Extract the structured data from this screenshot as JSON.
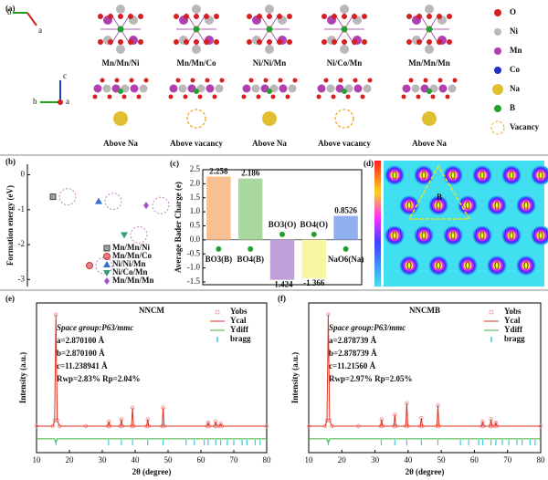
{
  "panel_a": {
    "label": "(a)",
    "axes_top": [
      "b",
      "a"
    ],
    "axes_bottom": [
      "c",
      "b",
      "a"
    ],
    "structures": [
      "Mn/Mn/Ni",
      "Mn/Mn/Co",
      "Ni/Ni/Mn",
      "Ni/Co/Mn",
      "Mn/Mn/Mn"
    ],
    "sites": [
      "Above Na",
      "Above vacancy",
      "Above Na",
      "Above vacancy",
      "Above Na"
    ],
    "legend": [
      {
        "label": "O",
        "color": "#d42020"
      },
      {
        "label": "Ni",
        "color": "#b8b8b8"
      },
      {
        "label": "Mn",
        "color": "#b040b0"
      },
      {
        "label": "Co",
        "color": "#2030c0"
      },
      {
        "label": "Na",
        "color": "#e0c030"
      },
      {
        "label": "B",
        "color": "#20a030"
      },
      {
        "label": "Vacancy",
        "color": "#f0a820"
      }
    ]
  },
  "panel_d": {
    "label": "(d)",
    "site": "B"
  },
  "chart_data": [
    {
      "type": "scatter",
      "panel": "(b)",
      "y_label": "Formation energy (eV)",
      "ylim": [
        -3.2,
        0.3
      ],
      "yticks": [
        0,
        -1,
        -2,
        -3
      ],
      "series": [
        {
          "name": "Mn/Mn/Ni",
          "color": "#444444",
          "marker": "square",
          "values": [
            -0.63
          ]
        },
        {
          "name": "Mn/Mn/Co",
          "color": "#d03030",
          "marker": "circle",
          "values": [
            -2.6
          ]
        },
        {
          "name": "Ni/Ni/Mn",
          "color": "#3070d0",
          "marker": "triangle",
          "values": [
            -0.76
          ]
        },
        {
          "name": "Ni/Co/Mn",
          "color": "#30a080",
          "marker": "down-triangle",
          "values": [
            -1.72
          ]
        },
        {
          "name": "Mn/Mn/Mn",
          "color": "#a050d0",
          "marker": "diamond",
          "values": [
            -0.88
          ]
        }
      ]
    },
    {
      "type": "bar",
      "panel": "(c)",
      "y_label": "Average Bader Charge (e)",
      "categories": [
        "BO3(B)",
        "BO4(B)",
        "BO3(O)",
        "BO4(O)",
        "NaO6(Na)"
      ],
      "values": [
        2.258,
        2.186,
        -1.424,
        -1.366,
        0.8526
      ],
      "colors": [
        "#f8c090",
        "#a8d8a0",
        "#c0a0d8",
        "#f8f4a0",
        "#90b0f0"
      ],
      "ylim": [
        -1.6,
        2.5
      ],
      "yticks": [
        2.5,
        {
          "value": 2,
          "label": "2.0"
        },
        1.5,
        {
          "value": 1,
          "label": "1.0"
        },
        0.5,
        {
          "value": 0,
          "label": "0.0"
        },
        -0.5,
        {
          "value": -1,
          "label": "-1.0"
        },
        -1.5
      ]
    },
    {
      "type": "xrd",
      "panel": "(e)",
      "title": "NNCM",
      "annotations": [
        "Space group:P63/mmc",
        "a=2.870100 Å",
        "b=2.870100 Å",
        "c=11.238941 Å",
        "Rwp=2.83% Rp=2.04%"
      ],
      "x_label": "2θ (degree)",
      "y_label": "Intensity (a.u.)",
      "xlim": [
        10,
        80
      ],
      "xticks": [
        10,
        20,
        30,
        40,
        50,
        60,
        70,
        80
      ],
      "ylim": [
        -0.2,
        1.1
      ],
      "x": [
        10,
        15,
        15.5,
        15.9,
        16.3,
        17,
        25,
        31.7,
        32,
        32.3,
        35.5,
        35.8,
        36.1,
        38.9,
        39.2,
        39.5,
        43.5,
        43.8,
        44.1,
        48.2,
        48.5,
        48.8,
        61.9,
        62.2,
        62.5,
        64.2,
        64.5,
        64.8,
        65.7,
        66,
        66.3,
        80
      ],
      "series": [
        {
          "name": "Yobs",
          "color": "#f0a0a0",
          "values": [
            0.03,
            0.03,
            0.08,
            1.0,
            0.08,
            0.03,
            0.03,
            0.03,
            0.07,
            0.03,
            0.03,
            0.09,
            0.03,
            0.03,
            0.19,
            0.03,
            0.03,
            0.09,
            0.03,
            0.03,
            0.19,
            0.03,
            0.03,
            0.06,
            0.03,
            0.03,
            0.07,
            0.03,
            0.03,
            0.05,
            0.03,
            0.03
          ]
        },
        {
          "name": "Ycal",
          "color": "#e03020",
          "values": [
            0.03,
            0.03,
            0.08,
            1.0,
            0.08,
            0.03,
            0.03,
            0.03,
            0.07,
            0.03,
            0.03,
            0.09,
            0.03,
            0.03,
            0.19,
            0.03,
            0.03,
            0.09,
            0.03,
            0.03,
            0.19,
            0.03,
            0.03,
            0.06,
            0.03,
            0.03,
            0.07,
            0.03,
            0.03,
            0.05,
            0.03,
            0.03
          ]
        },
        {
          "name": "Ydiff",
          "color": "#40b040",
          "values": [
            -0.08,
            -0.08,
            -0.08,
            -0.12,
            -0.08,
            -0.08,
            -0.08,
            -0.08,
            -0.08,
            -0.08,
            -0.08,
            -0.08,
            -0.08,
            -0.08,
            -0.08,
            -0.08,
            -0.08,
            -0.08,
            -0.08,
            -0.08,
            -0.08,
            -0.08,
            -0.08,
            -0.08,
            -0.08,
            -0.08,
            -0.08,
            -0.08,
            -0.08,
            -0.08,
            -0.08,
            -0.08
          ]
        },
        {
          "name": "bragg",
          "color": "#40c8e0",
          "x": [
            15.9,
            31.9,
            35.8,
            39.2,
            43.8,
            48.5,
            55.5,
            58,
            61,
            62.2,
            64.5,
            66,
            68,
            70,
            72.5,
            74,
            76.5,
            78
          ]
        }
      ]
    },
    {
      "type": "xrd",
      "panel": "(f)",
      "title": "NNCMB",
      "annotations": [
        "Space group:P63/mmc",
        "a=2.878739 Å",
        "b=2.878739 Å",
        "c=11.21560 Å",
        "Rwp=2.97% Rp=2.05%"
      ],
      "x_label": "2θ (degree)",
      "y_label": "Intensity (a.u.)",
      "xlim": [
        10,
        80
      ],
      "xticks": [
        10,
        20,
        30,
        40,
        50,
        60,
        70,
        80
      ],
      "ylim": [
        -0.2,
        1.1
      ],
      "x": [
        10,
        15,
        15.5,
        15.9,
        16.3,
        17,
        25,
        31.7,
        32,
        32.3,
        35.7,
        36,
        36.3,
        39.3,
        39.6,
        39.9,
        43.7,
        44,
        44.3,
        48.7,
        49,
        49.3,
        62.2,
        62.5,
        62.8,
        64.7,
        65,
        65.3,
        66.2,
        66.5,
        66.8,
        80
      ],
      "series": [
        {
          "name": "Yobs",
          "color": "#f0a0a0",
          "values": [
            0.03,
            0.03,
            0.08,
            1.0,
            0.08,
            0.03,
            0.03,
            0.03,
            0.09,
            0.03,
            0.03,
            0.13,
            0.03,
            0.03,
            0.23,
            0.03,
            0.03,
            0.1,
            0.03,
            0.03,
            0.21,
            0.03,
            0.03,
            0.07,
            0.03,
            0.03,
            0.09,
            0.03,
            0.03,
            0.06,
            0.03,
            0.03
          ]
        },
        {
          "name": "Ycal",
          "color": "#e03020",
          "values": [
            0.03,
            0.03,
            0.08,
            1.0,
            0.08,
            0.03,
            0.03,
            0.03,
            0.09,
            0.03,
            0.03,
            0.13,
            0.03,
            0.03,
            0.23,
            0.03,
            0.03,
            0.1,
            0.03,
            0.03,
            0.21,
            0.03,
            0.03,
            0.07,
            0.03,
            0.03,
            0.09,
            0.03,
            0.03,
            0.06,
            0.03,
            0.03
          ]
        },
        {
          "name": "Ydiff",
          "color": "#40b040",
          "values": [
            -0.08,
            -0.08,
            -0.08,
            -0.12,
            -0.08,
            -0.08,
            -0.08,
            -0.08,
            -0.08,
            -0.08,
            -0.08,
            -0.08,
            -0.08,
            -0.08,
            -0.08,
            -0.08,
            -0.08,
            -0.08,
            -0.08,
            -0.08,
            -0.08,
            -0.08,
            -0.08,
            -0.08,
            -0.08,
            -0.08,
            -0.08,
            -0.08,
            -0.08,
            -0.08,
            -0.08,
            -0.08
          ]
        },
        {
          "name": "bragg",
          "color": "#40c8e0",
          "x": [
            15.9,
            31.9,
            36,
            39.6,
            44,
            49,
            55.8,
            58.3,
            61.3,
            62.5,
            65,
            66.5,
            68.4,
            70.4,
            72.8,
            74.4,
            76.8,
            78.3
          ]
        }
      ]
    }
  ]
}
